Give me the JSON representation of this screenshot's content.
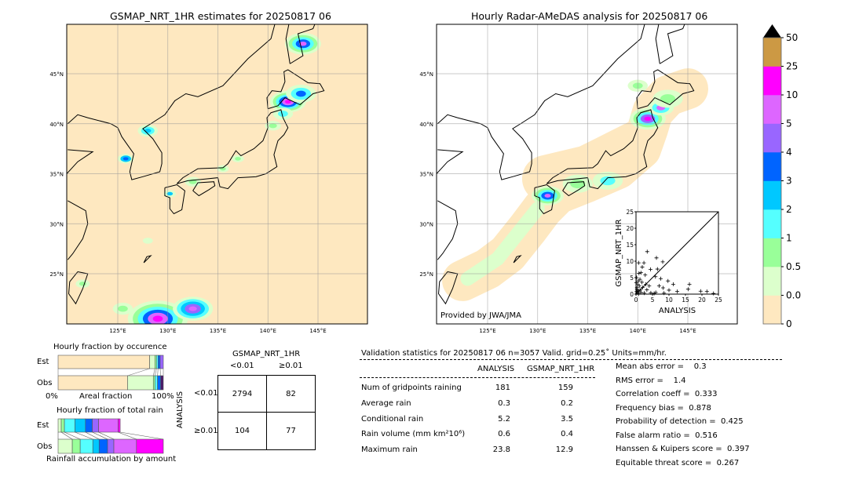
{
  "left_map": {
    "title": "GSMAP_NRT_1HR estimates for 20250817 06",
    "lon_ticks": [
      "125°E",
      "130°E",
      "135°E",
      "140°E",
      "145°E"
    ],
    "lat_ticks": [
      "45°N",
      "40°N",
      "35°N",
      "30°N",
      "25°N"
    ]
  },
  "right_map": {
    "title": "Hourly Radar-AMeDAS analysis for 20250817 06",
    "credit": "Provided by JWA/JMA",
    "lon_ticks": [
      "125°E",
      "130°E",
      "135°E",
      "140°E",
      "145°E"
    ],
    "lat_ticks": [
      "45°N",
      "40°N",
      "35°N",
      "30°N",
      "25°N"
    ]
  },
  "colorbar": {
    "ticks": [
      "0",
      "0.01",
      "0.5",
      "1",
      "2",
      "3",
      "4",
      "5",
      "10",
      "25",
      "50"
    ],
    "colors": [
      "#fee8c0",
      "#dcffcc",
      "#99ff99",
      "#55ffff",
      "#00c8ff",
      "#0064ff",
      "#9966ff",
      "#dd66ff",
      "#ff00ff",
      "#cc9944"
    ],
    "extend_color": "#000000"
  },
  "chart_data": [
    {
      "type": "scatter",
      "xlabel": "ANALYSIS",
      "ylabel": "GSMAP_NRT_1HR",
      "xlim": [
        0,
        25
      ],
      "ylim": [
        0,
        25
      ],
      "ticks": [
        "0",
        "5",
        "10",
        "15",
        "20",
        "25"
      ],
      "diagonal": true,
      "points": [
        [
          3.4,
          12.9
        ],
        [
          6.2,
          11
        ],
        [
          0.8,
          9.5
        ],
        [
          2.4,
          9.5
        ],
        [
          8.1,
          9.8
        ],
        [
          1.9,
          8.2
        ],
        [
          4.4,
          7.5
        ],
        [
          6.5,
          7.6
        ],
        [
          0.9,
          6.3
        ],
        [
          1.5,
          6.5
        ],
        [
          2.8,
          5.8
        ],
        [
          5.9,
          5.3
        ],
        [
          7.5,
          4.7
        ],
        [
          9.7,
          4
        ],
        [
          11.3,
          3
        ],
        [
          16.2,
          3
        ],
        [
          15.8,
          1.5
        ],
        [
          19.6,
          0.9
        ],
        [
          21.5,
          0.8
        ],
        [
          23.5,
          0.2
        ],
        [
          10,
          1.2
        ],
        [
          12.5,
          0.8
        ],
        [
          8.2,
          1.9
        ],
        [
          7,
          2.5
        ],
        [
          4,
          2.5
        ],
        [
          3,
          3
        ],
        [
          1.2,
          4.5
        ],
        [
          0.5,
          3
        ],
        [
          0.3,
          2
        ],
        [
          0.6,
          1
        ],
        [
          1.5,
          0.5
        ],
        [
          2.5,
          0.3
        ],
        [
          4.5,
          0.4
        ],
        [
          5.5,
          0.2
        ],
        [
          3.3,
          1.3
        ],
        [
          2,
          2
        ],
        [
          0.2,
          5
        ],
        [
          1,
          2.5
        ],
        [
          0.4,
          0.4
        ],
        [
          0.8,
          0.1
        ],
        [
          6,
          0.5
        ],
        [
          8.5,
          0.3
        ],
        [
          0.1,
          3.5
        ],
        [
          0.3,
          1.5
        ],
        [
          1.2,
          1.2
        ],
        [
          0.7,
          4
        ],
        [
          1.8,
          3.6
        ],
        [
          0.2,
          0.8
        ]
      ]
    },
    {
      "type": "bar",
      "title": "Hourly fraction by occurence",
      "xlabel": "Areal fraction",
      "x_ticks": [
        "0%",
        "100%"
      ],
      "categories": [
        "Est",
        "Obs"
      ],
      "stacked_percent": [
        {
          "category": "Est",
          "values": [
            87,
            5,
            1.5,
            1.5,
            2,
            3
          ]
        },
        {
          "category": "Obs",
          "values": [
            66,
            24.5,
            1.5,
            2.5,
            3,
            2.5
          ]
        }
      ],
      "segment_colors": [
        "#fee8c0",
        "#dcffcc",
        "#99ff99",
        "#55ffff",
        "#0064ff",
        "#9966ff"
      ],
      "obs_last_color": "#4a1a6a"
    },
    {
      "type": "bar",
      "title": "Hourly fraction of total rain",
      "xlabel": "Rainfall accumulation by amount",
      "categories": [
        "Est",
        "Obs"
      ],
      "stacked_relative": [
        {
          "category": "Est",
          "values": [
            3,
            3,
            10,
            10,
            6.5,
            6,
            18.5,
            2
          ]
        },
        {
          "category": "Obs",
          "values": [
            13.5,
            7.5,
            12,
            6,
            8,
            6,
            21.5,
            25.5
          ]
        }
      ],
      "segment_colors": [
        "#dcffcc",
        "#99ff99",
        "#55ffff",
        "#00c8ff",
        "#0064ff",
        "#9966ff",
        "#dd66ff",
        "#ff00ff"
      ]
    }
  ],
  "contingency": {
    "title": "GSMAP_NRT_1HR",
    "col_labels": [
      "<0.01",
      "≥0.01"
    ],
    "row_title": "ANALYSIS",
    "row_labels": [
      "<0.01",
      "≥0.01"
    ],
    "cells": [
      [
        "2794",
        "82"
      ],
      [
        "104",
        "77"
      ]
    ]
  },
  "stats": {
    "header": "Validation statistics for 20250817 06  n=3057 Valid. grid=0.25˚ Units=mm/hr.",
    "col_headers": [
      "ANALYSIS",
      "GSMAP_NRT_1HR"
    ],
    "rows": [
      {
        "label": "Num of gridpoints raining",
        "a": "181",
        "g": "159"
      },
      {
        "label": "Average rain",
        "a": "0.3",
        "g": "0.2"
      },
      {
        "label": "Conditional rain",
        "a": "5.2",
        "g": "3.5"
      },
      {
        "label": "Rain volume (mm km²10⁶)",
        "a": "0.6",
        "g": "0.4"
      },
      {
        "label": "Maximum rain",
        "a": "23.8",
        "g": "12.9"
      }
    ],
    "scores": [
      "Mean abs error =    0.3",
      "RMS error =    1.4",
      "Correlation coeff =  0.333",
      "Frequency bias =  0.878",
      "Probability of detection =  0.425",
      "False alarm ratio =  0.516",
      "Hanssen & Kuipers score =  0.397",
      "Equitable threat score =  0.267"
    ]
  }
}
